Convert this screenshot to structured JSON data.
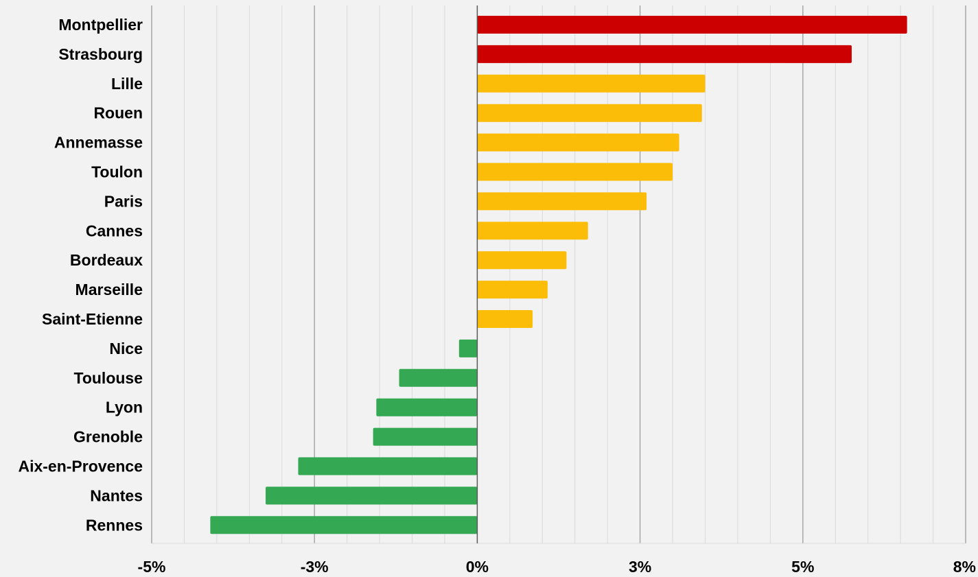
{
  "chart_data": {
    "type": "bar",
    "orientation": "horizontal",
    "categories": [
      "Montpellier",
      "Strasbourg",
      "Lille",
      "Rouen",
      "Annemasse",
      "Toulon",
      "Paris",
      "Cannes",
      "Bordeaux",
      "Marseille",
      "Saint-Etienne",
      "Nice",
      "Toulouse",
      "Lyon",
      "Grenoble",
      "Aix-en-Provence",
      "Nantes",
      "Rennes"
    ],
    "values": [
      6.6,
      5.75,
      3.5,
      3.45,
      3.1,
      3.0,
      2.6,
      1.7,
      1.37,
      1.08,
      0.85,
      -0.28,
      -1.2,
      -1.55,
      -1.6,
      -2.75,
      -3.25,
      -4.1
    ],
    "value_colors": [
      "#cc0000",
      "#cc0000",
      "#fbbd08",
      "#fbbd08",
      "#fbbd08",
      "#fbbd08",
      "#fbbd08",
      "#fbbd08",
      "#fbbd08",
      "#fbbd08",
      "#fbbd08",
      "#34a853",
      "#34a853",
      "#34a853",
      "#34a853",
      "#34a853",
      "#34a853",
      "#34a853"
    ],
    "x_ticks": [
      {
        "value": -5,
        "label": "-5%"
      },
      {
        "value": -2.5,
        "label": "-3%"
      },
      {
        "value": 0,
        "label": "0%"
      },
      {
        "value": 2.5,
        "label": "3%"
      },
      {
        "value": 5,
        "label": "5%"
      },
      {
        "value": 7.5,
        "label": "8%"
      }
    ],
    "xlim": [
      -5,
      7.5
    ],
    "minor_grid_step": 0.5,
    "grid": true,
    "legend": "none",
    "title": "",
    "xlabel": "",
    "ylabel": ""
  },
  "colors": {
    "background": "#f2f2f2",
    "minor_grid": "#d9d9d9",
    "major_grid": "#a6a6a6",
    "zero_axis": "#595959"
  }
}
